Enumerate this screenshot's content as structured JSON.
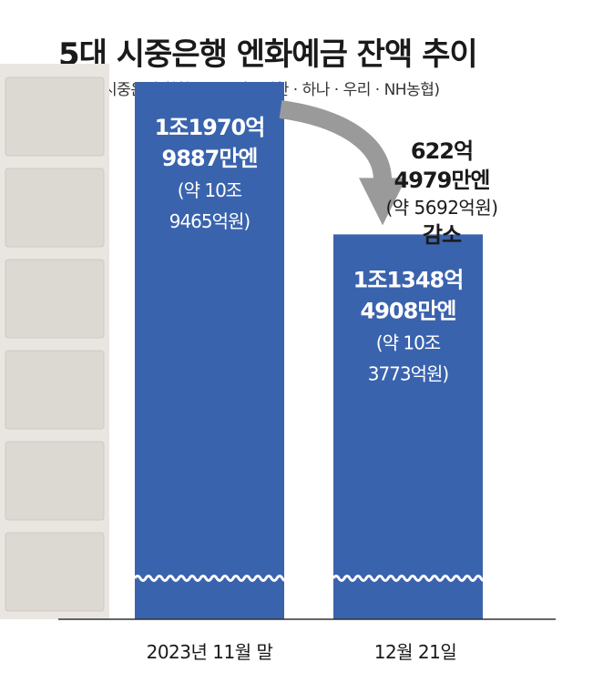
{
  "title": "5대 시중은행 엔화예금 잔액 추이",
  "subtitle": "※ 5대 시중은행 취합 (KB국민 · 신한 · 하나 · 우리 · NH농협)",
  "callout": {
    "line1": "622억",
    "line2": "4979만엔",
    "line3": "(약 5692억원)",
    "line4": "감소"
  },
  "colors": {
    "bar": "#3a63ad",
    "arrow": "#9a9a9a",
    "baseline": "#333333"
  },
  "chart_data": {
    "type": "bar",
    "title": "5대 시중은행 엔화예금 잔액 추이",
    "categories": [
      "2023년 11월 말",
      "12월 21일"
    ],
    "values": [
      1197098870000,
      1134849080000
    ],
    "unit": "엔",
    "data_labels": [
      {
        "line1": "1조1970억",
        "line2": "9887만엔",
        "line3": "(약 10조",
        "line4": "9465억원)"
      },
      {
        "line1": "1조1348억",
        "line2": "4908만엔",
        "line3": "(약 10조",
        "line4": "3773억원)"
      }
    ],
    "axis_break": true,
    "grid": false,
    "legend": "none"
  }
}
